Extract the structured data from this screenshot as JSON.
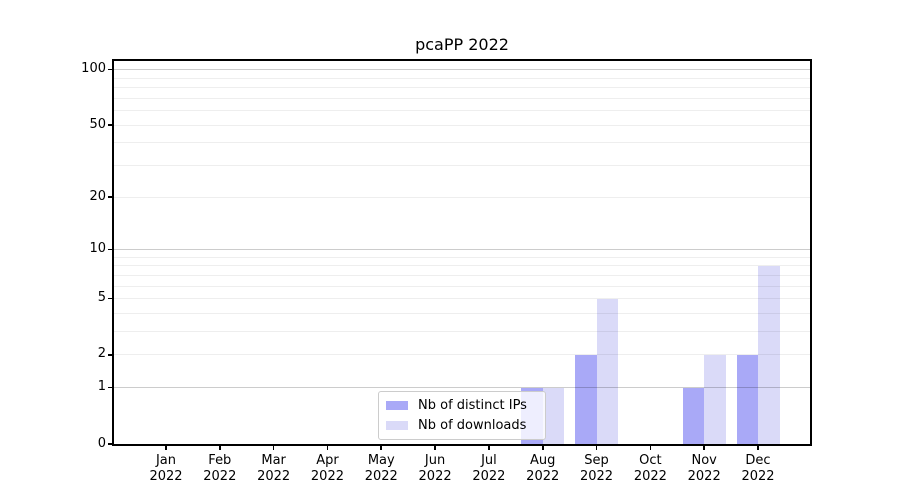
{
  "chart_data": {
    "type": "bar",
    "title": "pcaPP 2022",
    "categories": [
      "Jan 2022",
      "Feb 2022",
      "Mar 2022",
      "Apr 2022",
      "May 2022",
      "Jun 2022",
      "Jul 2022",
      "Aug 2022",
      "Sep 2022",
      "Oct 2022",
      "Nov 2022",
      "Dec 2022"
    ],
    "series": [
      {
        "name": "Nb of distinct IPs",
        "color": "#a9a9f7",
        "values": [
          0,
          0,
          0,
          0,
          0,
          0,
          0,
          1,
          2,
          0,
          1,
          2
        ]
      },
      {
        "name": "Nb of downloads",
        "color": "#dadaf8",
        "values": [
          0,
          0,
          0,
          0,
          0,
          0,
          0,
          1,
          5,
          0,
          2,
          8
        ]
      }
    ],
    "y_scale": "log1p",
    "y_ticks": [
      0,
      1,
      2,
      5,
      10,
      20,
      50,
      100
    ],
    "y_minor_ticks": [
      3,
      4,
      6,
      7,
      8,
      9,
      30,
      40,
      60,
      70,
      80,
      90
    ],
    "y_max": 111.6,
    "grid": "on",
    "legend_position": "lower-center",
    "axis_color": "#000000",
    "background": "#ffffff"
  }
}
